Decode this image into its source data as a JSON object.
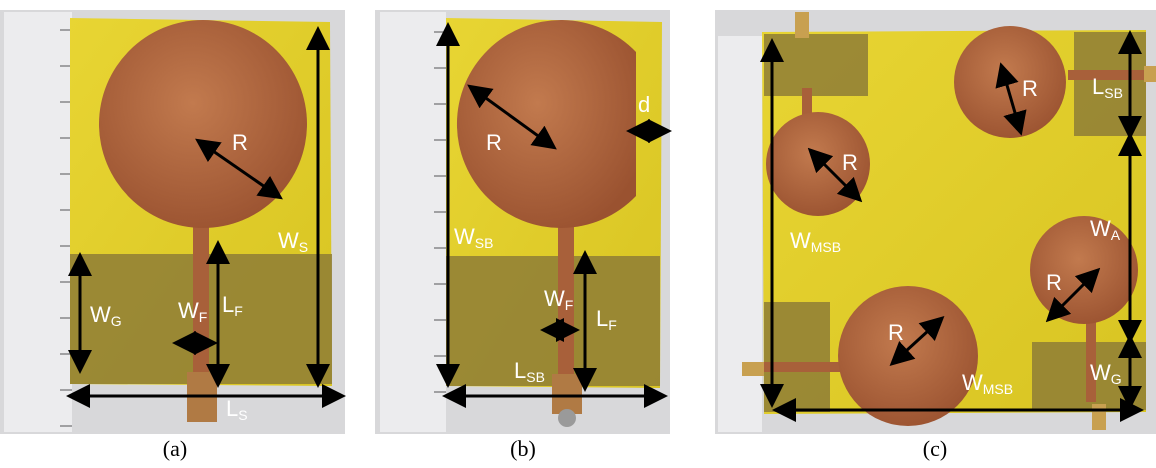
{
  "captions": {
    "a": "(a)",
    "b": "(b)",
    "c": "(c)"
  },
  "panel_a": {
    "R": "R",
    "WS": "W",
    "WS_sub": "S",
    "WG": "W",
    "WG_sub": "G",
    "WF": "W",
    "WF_sub": "F",
    "LF": "L",
    "LF_sub": "F",
    "LS": "L",
    "LS_sub": "S"
  },
  "panel_b": {
    "R": "R",
    "d": "d",
    "WSB": "W",
    "WSB_sub": "SB",
    "WF": "W",
    "WF_sub": "F",
    "LF": "L",
    "LF_sub": "F",
    "LSB": "L",
    "LSB_sub": "SB"
  },
  "panel_c": {
    "R1": "R",
    "R2": "R",
    "R3": "R",
    "R4": "R",
    "LSB": "L",
    "LSB_sub": "SB",
    "WMSB_left": "W",
    "WMSB_left_sub": "MSB",
    "WA": "W",
    "WA_sub": "A",
    "WMSB_bottom": "W",
    "WMSB_bottom_sub": "MSB",
    "WG": "W",
    "WG_sub": "G"
  },
  "colors": {
    "substrate": "#e3d32a",
    "copper": "#a8603a",
    "ground": "#8a7a34",
    "ruler": "#e8e8ea",
    "arrow": "#000000"
  }
}
